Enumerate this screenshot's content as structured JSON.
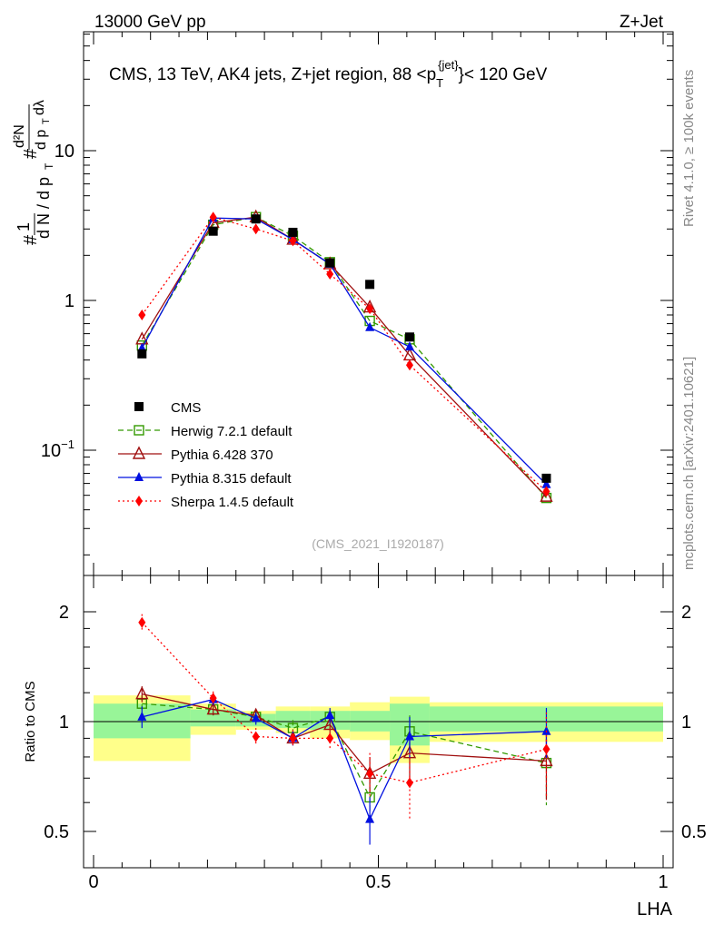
{
  "header": {
    "left": "13000 GeV pp",
    "right": "Z+Jet"
  },
  "watermark": {
    "rivet": "Rivet 4.1.0, ≥ 100k events",
    "mcplots": "mcplots.cern.ch [arXiv:2401.10621]"
  },
  "chart_data": {
    "type": "scatter",
    "title": "CMS, 13 TeV, AK4 jets, Z+jet region, 88 <p_T^{jet}< 120 GeV",
    "title_parts": {
      "main": "CMS, 13 TeV, AK4 jets, Z+jet region, 88 <p",
      "sub": "T",
      "sup": "{jet}",
      "tail": "}< 120 GeV"
    },
    "analysis_id": "(CMS_2021_I1920187)",
    "xlabel": "LHA",
    "ylabel_main": "1/N dN/dp_T d²N/dp_T dλ",
    "ylabel_ratio": "Ratio to CMS",
    "xlim": [
      0,
      1
    ],
    "ylim_main": [
      0.018,
      60
    ],
    "ylim_ratio": [
      0.4,
      2.3
    ],
    "yscale_main": "log",
    "x_ticks": [
      "0",
      "0.5",
      "1"
    ],
    "main_y_ticks": [
      "10",
      "1",
      "10^-1"
    ],
    "ratio_y_ticks": [
      "2",
      "1",
      "0.5"
    ],
    "x": [
      0.085,
      0.21,
      0.285,
      0.35,
      0.415,
      0.485,
      0.555,
      0.795
    ],
    "bin_edges": [
      0,
      0.17,
      0.25,
      0.32,
      0.38,
      0.45,
      0.52,
      0.59,
      1.0
    ],
    "cms": {
      "name": "CMS",
      "color": "#000000",
      "values": [
        0.44,
        2.9,
        3.5,
        2.85,
        1.78,
        1.28,
        0.57,
        0.065
      ]
    },
    "ratio_band_yellow": [
      [
        0.78,
        1.18
      ],
      [
        0.92,
        1.12
      ],
      [
        0.95,
        1.07
      ],
      [
        0.93,
        1.1
      ],
      [
        0.9,
        1.1
      ],
      [
        0.89,
        1.13
      ],
      [
        0.77,
        1.17
      ],
      [
        0.88,
        1.13
      ]
    ],
    "ratio_band_green": [
      [
        0.9,
        1.12
      ],
      [
        0.97,
        1.08
      ],
      [
        0.97,
        1.05
      ],
      [
        0.96,
        1.07
      ],
      [
        0.95,
        1.07
      ],
      [
        0.94,
        1.07
      ],
      [
        0.86,
        1.12
      ],
      [
        0.94,
        1.1
      ]
    ],
    "series": [
      {
        "name": "Herwig 7.2.1 default",
        "color": "#339900",
        "marker": "open-square",
        "dash": "6,4",
        "values": [
          0.5,
          3.2,
          3.6,
          2.7,
          1.8,
          0.73,
          0.55,
          0.048
        ],
        "ratio": [
          1.12,
          1.08,
          1.03,
          0.96,
          1.03,
          0.62,
          0.94,
          0.77
        ],
        "ratio_err": [
          0.06,
          0.04,
          0.04,
          0.05,
          0.05,
          0.08,
          0.1,
          0.18
        ]
      },
      {
        "name": "Pythia 6.428 370",
        "color": "#a01010",
        "marker": "open-triangle",
        "dash": "",
        "values": [
          0.55,
          3.3,
          3.6,
          2.55,
          1.75,
          0.9,
          0.43,
          0.049
        ],
        "ratio": [
          1.19,
          1.08,
          1.04,
          0.9,
          0.98,
          0.72,
          0.82,
          0.78
        ],
        "ratio_err": [
          0.06,
          0.04,
          0.04,
          0.04,
          0.05,
          0.08,
          0.12,
          0.17
        ]
      },
      {
        "name": "Pythia 8.315 default",
        "color": "#0010e0",
        "marker": "filled-triangle",
        "dash": "",
        "values": [
          0.48,
          3.55,
          3.5,
          2.55,
          1.75,
          0.66,
          0.49,
          0.059
        ],
        "ratio": [
          1.03,
          1.15,
          1.02,
          0.9,
          1.04,
          0.54,
          0.91,
          0.94
        ],
        "ratio_err": [
          0.07,
          0.04,
          0.04,
          0.04,
          0.05,
          0.08,
          0.12,
          0.15
        ]
      },
      {
        "name": "Sherpa 1.4.5 default",
        "color": "#ff0000",
        "marker": "filled-diamond",
        "dash": "2,3",
        "values": [
          0.8,
          3.6,
          3.0,
          2.5,
          1.5,
          0.88,
          0.37,
          0.053
        ],
        "ratio": [
          1.87,
          1.16,
          0.91,
          0.9,
          0.9,
          0.72,
          0.68,
          0.84
        ],
        "ratio_err": [
          0.1,
          0.05,
          0.05,
          0.05,
          0.06,
          0.1,
          0.14,
          0.22
        ]
      }
    ]
  }
}
